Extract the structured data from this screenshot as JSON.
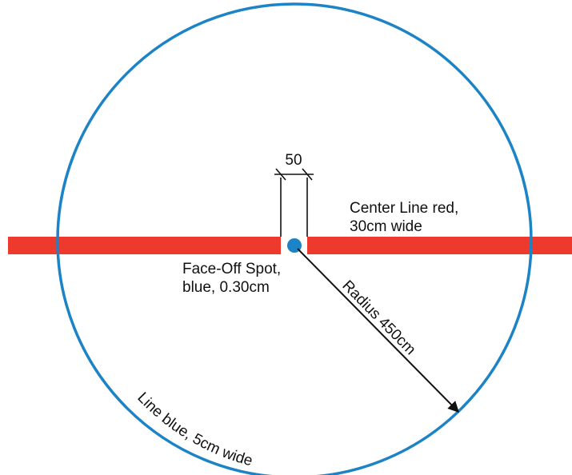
{
  "diagram": {
    "dimension_label": "50",
    "center_line_label": {
      "line1": "Center Line red,",
      "line2": "30cm wide"
    },
    "face_off_spot_label": {
      "line1": "Face-Off Spot,",
      "line2": "blue, 0.30cm"
    },
    "radius_label": "Radius 450cm",
    "circle_line_label": "Line blue, 5cm wide"
  },
  "colors": {
    "circle_line": "#1c84c6",
    "center_line": "#ee3a2c",
    "face_off_spot": "#1c84c6",
    "annotation": "#111111",
    "background": "#ffffff"
  }
}
